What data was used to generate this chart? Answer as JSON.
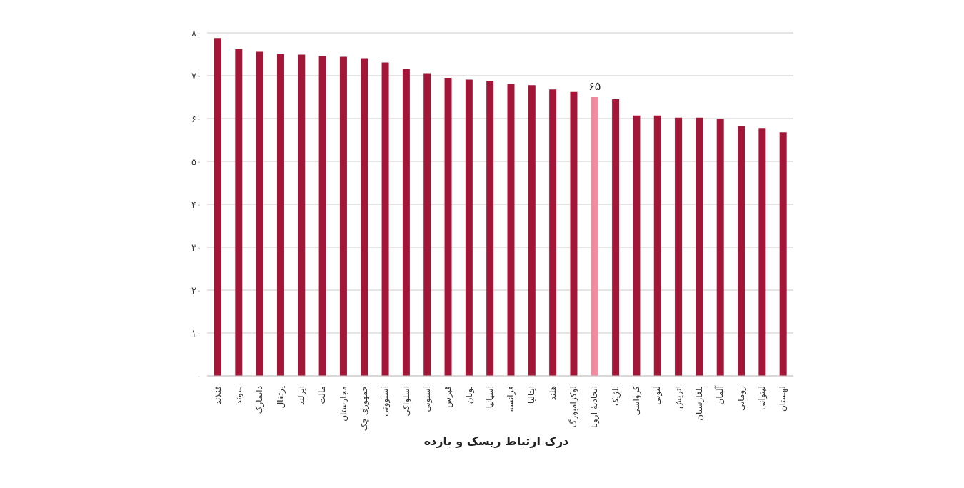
{
  "chart_data": {
    "type": "bar",
    "xlabel": "درک ارتباط ریسک و بازده",
    "categories": [
      "فنلاند",
      "سوئد",
      "دانمارک",
      "پرتغال",
      "ایرلند",
      "مالت",
      "مجارستان",
      "جمهوری چک",
      "اسلوونی",
      "اسلواکی",
      "استونی",
      "قبرس",
      "یونان",
      "اسپانیا",
      "فرانسه",
      "ایتالیا",
      "هلند",
      "لوکزامبورگ",
      "اتحادیهٔ اروپا",
      "بلژیک",
      "کرواسی",
      "لتونی",
      "اتریش",
      "بلغارستان",
      "آلمان",
      "رومانی",
      "لیتوانی",
      "لهستان"
    ],
    "values": [
      78.8,
      76.2,
      75.6,
      75.1,
      74.9,
      74.6,
      74.4,
      74.1,
      73.1,
      71.6,
      70.6,
      69.5,
      69.1,
      68.8,
      68.1,
      67.8,
      66.8,
      66.2,
      65,
      64.5,
      60.7,
      60.7,
      60.2,
      60.2,
      59.9,
      58.3,
      57.8,
      56.8
    ],
    "colors": [
      "#a31638",
      "#a31638",
      "#a31638",
      "#a31638",
      "#a31638",
      "#a31638",
      "#a31638",
      "#a31638",
      "#a31638",
      "#a31638",
      "#a31638",
      "#a31638",
      "#a31638",
      "#a31638",
      "#a31638",
      "#a31638",
      "#a31638",
      "#a31638",
      "#f08ba0",
      "#a31638",
      "#a31638",
      "#a31638",
      "#a31638",
      "#a31638",
      "#a31638",
      "#a31638",
      "#a31638",
      "#a31638"
    ],
    "value_labels": [
      null,
      null,
      null,
      null,
      null,
      null,
      null,
      null,
      null,
      null,
      null,
      null,
      null,
      null,
      null,
      null,
      null,
      null,
      "۶۵",
      null,
      null,
      null,
      null,
      null,
      null,
      null,
      null,
      null
    ],
    "ylim": [
      0,
      80
    ],
    "yticks": [
      {
        "value": 0,
        "label": "۰"
      },
      {
        "value": 10,
        "label": "۱۰"
      },
      {
        "value": 20,
        "label": "۲۰"
      },
      {
        "value": 30,
        "label": "۳۰"
      },
      {
        "value": 40,
        "label": "۴۰"
      },
      {
        "value": 50,
        "label": "۵۰"
      },
      {
        "value": 60,
        "label": "۶۰"
      },
      {
        "value": 70,
        "label": "۷۰"
      },
      {
        "value": 80,
        "label": "۸۰"
      }
    ],
    "grid": "y",
    "legend": false
  }
}
